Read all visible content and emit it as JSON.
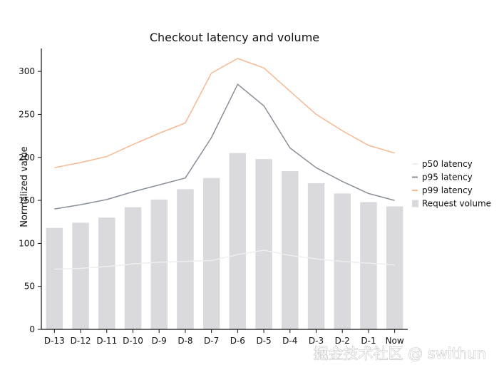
{
  "chart_data": {
    "type": "bar",
    "title": "Checkout latency and volume",
    "xlabel": "",
    "ylabel": "Normalized value",
    "categories": [
      "D-13",
      "D-12",
      "D-11",
      "D-10",
      "D-9",
      "D-8",
      "D-7",
      "D-6",
      "D-5",
      "D-4",
      "D-3",
      "D-2",
      "D-1",
      "Now"
    ],
    "ylim": [
      0,
      320
    ],
    "yticks": [
      0,
      50,
      100,
      150,
      200,
      250,
      300
    ],
    "grid": false,
    "legend_position": "right",
    "series": [
      {
        "name": "p50 latency",
        "kind": "line",
        "color": "#eeeeee",
        "values": [
          70,
          71,
          73,
          76,
          78,
          79,
          80,
          87,
          92,
          86,
          82,
          79,
          77,
          75
        ]
      },
      {
        "name": "p95 latency",
        "kind": "line",
        "color": "#888f99",
        "values": [
          140,
          145,
          151,
          160,
          168,
          176,
          223,
          285,
          260,
          211,
          188,
          172,
          158,
          150
        ]
      },
      {
        "name": "p99 latency",
        "kind": "line",
        "color": "#f6b891",
        "values": [
          188,
          194,
          201,
          215,
          228,
          240,
          298,
          315,
          304,
          277,
          250,
          231,
          214,
          205
        ]
      },
      {
        "name": "Request volume",
        "kind": "bar",
        "color": "#d9d9de",
        "values": [
          118,
          124,
          130,
          142,
          151,
          163,
          176,
          205,
          198,
          184,
          170,
          158,
          148,
          143
        ]
      }
    ]
  },
  "watermark": "掘金技术社区 @ swithun"
}
